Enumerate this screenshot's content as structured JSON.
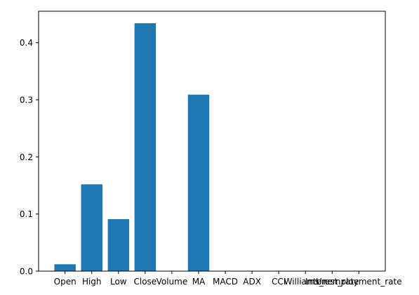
{
  "chart_data": {
    "type": "bar",
    "title": "",
    "xlabel": "",
    "ylabel": "",
    "categories": [
      "Open",
      "High",
      "Low",
      "Close",
      "Volume",
      "MA",
      "MACD",
      "ADX",
      "CCI",
      "Williams_r",
      "Interest_rate",
      "Unemployment_rate"
    ],
    "values": [
      0.012,
      0.152,
      0.091,
      0.434,
      0.0,
      0.309,
      0.0,
      0.0,
      0.0,
      0.0,
      0.0,
      0.0
    ],
    "ylim": [
      0,
      0.455
    ],
    "yticks": [
      0.0,
      0.1,
      0.2,
      0.3,
      0.4
    ],
    "ytick_labels": [
      "0.0",
      "0.1",
      "0.2",
      "0.3",
      "0.4"
    ],
    "grid": false,
    "bar_color": "#1f77b4"
  }
}
